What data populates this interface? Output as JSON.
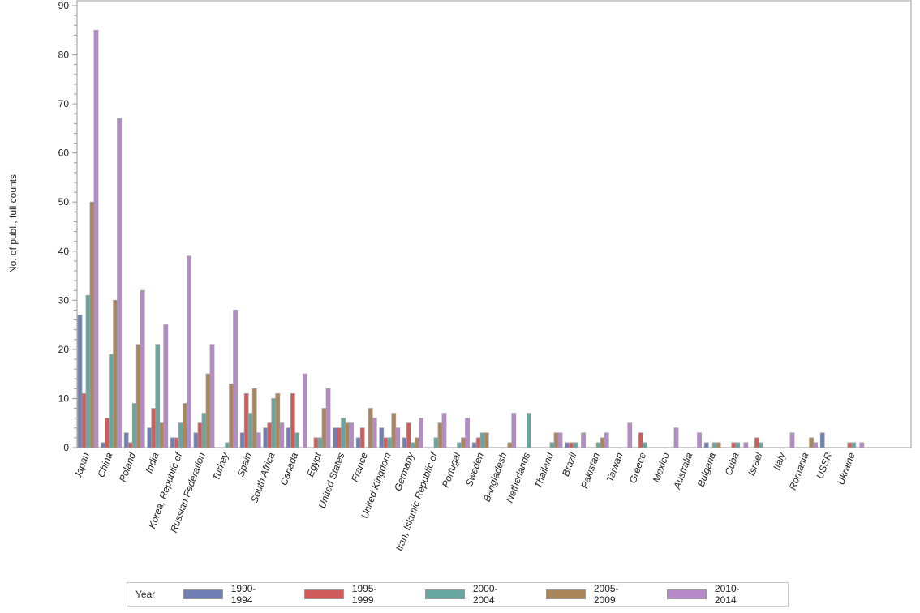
{
  "chart_data": {
    "type": "bar",
    "title": "",
    "xlabel": "",
    "ylabel": "No. of publ., full counts",
    "ylim": [
      0,
      90
    ],
    "yticks": [
      0,
      10,
      20,
      30,
      40,
      50,
      60,
      70,
      80,
      90
    ],
    "grid": false,
    "legend_position": "bottom",
    "legend_title": "Year",
    "categories": [
      "Japan",
      "China",
      "Poland",
      "India",
      "Korea, Republic of",
      "Russian Federation",
      "Turkey",
      "Spain",
      "South Africa",
      "Canada",
      "Egypt",
      "United States",
      "France",
      "United Kingdom",
      "Germany",
      "Iran, Islamic Republic of",
      "Portugal",
      "Sweden",
      "Bangladesh",
      "Netherlands",
      "Thailand",
      "Brazil",
      "Pakistan",
      "Taiwan",
      "Greece",
      "Mexico",
      "Australia",
      "Bulgaria",
      "Cuba",
      "Israel",
      "Italy",
      "Romania",
      "USSR",
      "Ukraine"
    ],
    "series": [
      {
        "name": "1990-1994",
        "color": "#6f7eb3",
        "values": [
          27,
          1,
          3,
          4,
          2,
          3,
          0,
          3,
          4,
          4,
          0,
          4,
          2,
          4,
          2,
          0,
          0,
          1,
          0,
          0,
          0,
          1,
          0,
          0,
          0,
          0,
          0,
          1,
          0,
          0,
          0,
          0,
          3,
          0
        ]
      },
      {
        "name": "1995-1999",
        "color": "#d05b5b",
        "values": [
          11,
          6,
          1,
          8,
          2,
          5,
          0,
          11,
          5,
          11,
          2,
          4,
          4,
          2,
          5,
          0,
          0,
          2,
          0,
          0,
          0,
          1,
          0,
          0,
          3,
          0,
          0,
          0,
          1,
          2,
          0,
          0,
          0,
          1
        ]
      },
      {
        "name": "2000-2004",
        "color": "#66a5a0",
        "values": [
          31,
          19,
          9,
          21,
          5,
          7,
          1,
          7,
          10,
          3,
          2,
          6,
          0,
          2,
          1,
          2,
          1,
          3,
          0,
          7,
          1,
          1,
          1,
          0,
          1,
          0,
          0,
          1,
          1,
          1,
          0,
          0,
          0,
          1
        ]
      },
      {
        "name": "2005-2009",
        "color": "#a9865b",
        "values": [
          50,
          30,
          21,
          5,
          9,
          15,
          13,
          12,
          11,
          0,
          8,
          5,
          8,
          7,
          2,
          5,
          2,
          3,
          1,
          0,
          3,
          0,
          2,
          0,
          0,
          0,
          0,
          1,
          0,
          0,
          0,
          2,
          0,
          0
        ]
      },
      {
        "name": "2010-2014",
        "color": "#b689c8",
        "values": [
          85,
          67,
          32,
          25,
          39,
          21,
          28,
          3,
          5,
          15,
          12,
          5,
          6,
          4,
          6,
          7,
          6,
          0,
          7,
          0,
          3,
          3,
          3,
          5,
          0,
          4,
          3,
          0,
          1,
          0,
          3,
          1,
          0,
          1
        ]
      }
    ]
  },
  "legend": {
    "title": "Year",
    "items": [
      {
        "label": "1990-1994",
        "color": "#6f7eb3"
      },
      {
        "label": "1995-1999",
        "color": "#d05b5b"
      },
      {
        "label": "2000-2004",
        "color": "#66a5a0"
      },
      {
        "label": "2005-2009",
        "color": "#a9865b"
      },
      {
        "label": "2010-2014",
        "color": "#b689c8"
      }
    ]
  }
}
